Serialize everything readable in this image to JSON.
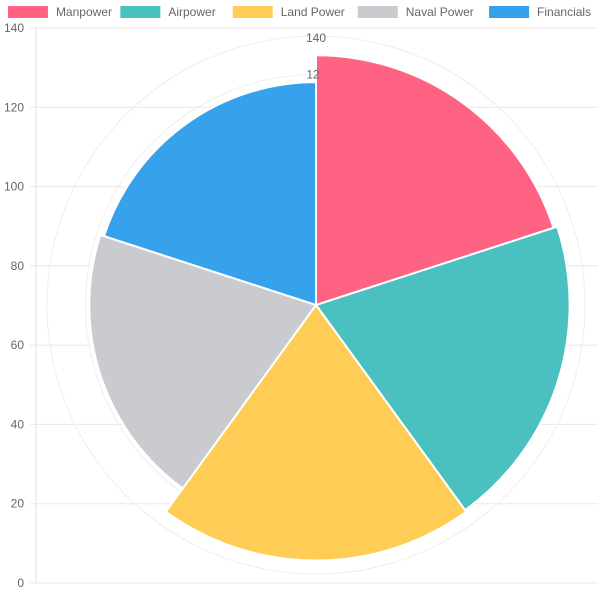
{
  "chart_data": {
    "type": "polarArea",
    "categories": [
      "Manpower",
      "Airpower",
      "Land Power",
      "Naval Power",
      "Financials"
    ],
    "values": [
      130,
      132,
      133,
      118,
      116
    ],
    "colors": [
      "#ff6384",
      "#4bc0c0",
      "#ffcd56",
      "#c9cbcf",
      "#36a2eb"
    ],
    "y_axis": {
      "min": 0,
      "max": 140,
      "ticks": [
        "0",
        "20",
        "40",
        "60",
        "80",
        "100",
        "120",
        "140"
      ]
    },
    "radial_axis": {
      "min": 0,
      "max": 140,
      "visible_tick_labels": [
        "140",
        "12"
      ]
    },
    "legend_position": "top",
    "grid": true
  }
}
